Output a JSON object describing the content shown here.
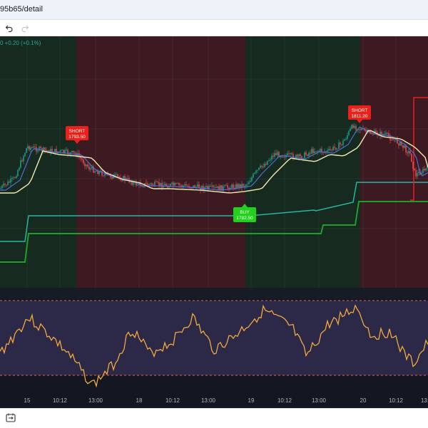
{
  "browser": {
    "url": "95b65/detail"
  },
  "toolbar": {
    "undo_icon": "undo-icon",
    "redo_icon": "redo-icon"
  },
  "legend": {
    "change": "0  +0.20 (+0.1%)"
  },
  "signals": [
    {
      "kind": "SHORT",
      "price": "1793.50",
      "color": "#e8221b"
    },
    {
      "kind": "BUY",
      "price": "1782.50",
      "color": "#22d11b"
    },
    {
      "kind": "SHORT",
      "price": "1811.20",
      "color": "#e8221b"
    }
  ],
  "time_axis": [
    "15",
    "10:12",
    "13:00",
    "18",
    "10:12",
    "13:00",
    "19",
    "10:12",
    "13:00",
    "20",
    "10:12",
    "13:00"
  ],
  "footer": {
    "icon": "date-range-icon"
  },
  "colors": {
    "bull_zone": "#172a1f",
    "bear_zone": "#3d1a22",
    "panel_bg": "#131722",
    "oscillator_band": "#2c2848",
    "oscillator_line": "#f2a93b",
    "teal_line": "#2bb3a2",
    "green_line": "#1f9e2a",
    "cream_line": "#f2e9b0",
    "blue_line": "#4a6fd6",
    "candle_up": "#26a69a",
    "candle_down": "#ef5350"
  }
}
